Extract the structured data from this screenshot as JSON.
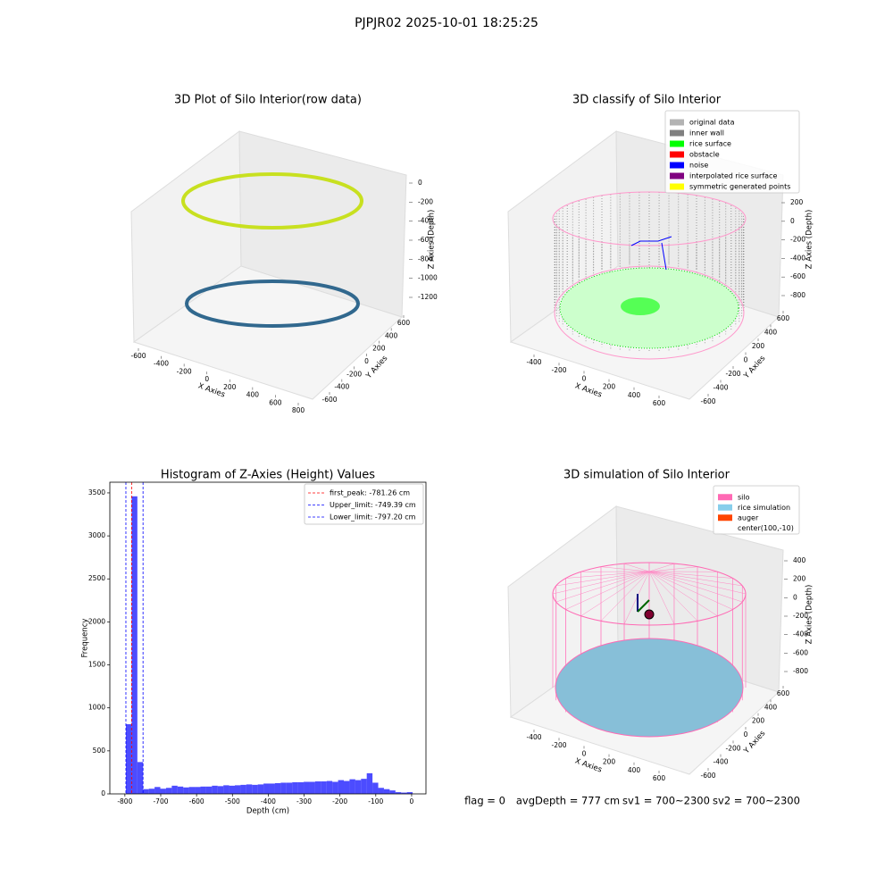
{
  "title": "PJPJR02 2025-10-01 18:25:25",
  "chart_data": [
    {
      "type": "scatter3d",
      "title": "3D Plot of Silo Interior(row data)",
      "xlabel": "X Axies",
      "ylabel": "Y Axies",
      "zlabel": "Z Axies (Depth)",
      "xticks": [
        -600,
        -400,
        -200,
        0,
        200,
        400,
        600,
        800
      ],
      "yticks": [
        -600,
        -400,
        -200,
        0,
        200,
        400,
        600
      ],
      "zticks": [
        0,
        -200,
        -400,
        -600,
        -800,
        -1000,
        -1200
      ]
    },
    {
      "type": "scatter3d",
      "title": "3D classify of Silo Interior",
      "xlabel": "X Axies",
      "ylabel": "Y Axies",
      "zlabel": "Z Axies (Depth)",
      "xticks": [
        -400,
        -200,
        0,
        200,
        400,
        600
      ],
      "yticks": [
        -600,
        -400,
        -200,
        0,
        200,
        400,
        600
      ],
      "zticks": [
        200,
        0,
        -200,
        -400,
        -600,
        -800
      ],
      "series": [
        {
          "name": "original data",
          "color": "#b3b3b3"
        },
        {
          "name": "inner wall",
          "color": "#808080"
        },
        {
          "name": "rice surface",
          "color": "#00ff00"
        },
        {
          "name": "obstacle",
          "color": "#ff0000"
        },
        {
          "name": "noise",
          "color": "#0000ff"
        },
        {
          "name": "interpolated rice surface",
          "color": "#800080"
        },
        {
          "name": "symmetric generated points",
          "color": "#ffff00"
        }
      ]
    },
    {
      "type": "histogram",
      "title": "Histogram of Z-Axies (Height) Values",
      "xlabel": "Depth (cm)",
      "ylabel": "Frequency",
      "color": "#0000ff",
      "alpha": 0.7,
      "bins": [
        -797.2,
        -781.2,
        -765.2,
        -749.2,
        -733.2,
        -717.2,
        -701.2,
        -685.2,
        -669.2,
        -653.2,
        -637.2,
        -621.2,
        -605.2,
        -589.2,
        -573.2,
        -557.2,
        -541.2,
        -525.2,
        -509.2,
        -493.2,
        -477.2,
        -461.2,
        -445.2,
        -429.2,
        -413.2,
        -397.2,
        -381.2,
        -365.2,
        -349.2,
        -333.2,
        -317.2,
        -301.2,
        -285.2,
        -269.2,
        -253.2,
        -237.2,
        -221.2,
        -205.2,
        -189.2,
        -173.2,
        -157.2,
        -141.2,
        -125.2,
        -109.2,
        -93.2,
        -77.2,
        -61.2,
        -45.2,
        -29.2,
        -13.2,
        2.8
      ],
      "values": [
        810,
        3460,
        370,
        55,
        60,
        80,
        60,
        70,
        95,
        85,
        75,
        80,
        80,
        85,
        85,
        95,
        90,
        100,
        95,
        100,
        105,
        110,
        105,
        110,
        120,
        120,
        125,
        130,
        130,
        135,
        135,
        140,
        140,
        145,
        145,
        150,
        140,
        160,
        150,
        170,
        160,
        175,
        240,
        130,
        70,
        55,
        40,
        20,
        15,
        20
      ],
      "xlim": [
        -842,
        40
      ],
      "ylim": [
        0,
        3624
      ],
      "xticks": [
        -800,
        -700,
        -600,
        -500,
        -400,
        -300,
        -200,
        -100,
        0
      ],
      "yticks": [
        0,
        500,
        1000,
        1500,
        2000,
        2500,
        3000,
        3500
      ],
      "vlines": [
        {
          "name": "first_peak: -781.26 cm",
          "value": -781.26,
          "color": "#ff0000"
        },
        {
          "name": "Upper_limit: -749.39 cm",
          "value": -749.39,
          "color": "#0000ff"
        },
        {
          "name": "Lower_limit: -797.20 cm",
          "value": -797.2,
          "color": "#0000ff"
        }
      ]
    },
    {
      "type": "scatter3d",
      "title": "3D simulation of Silo Interior",
      "xlabel": "X Axies",
      "ylabel": "Y Axies",
      "zlabel": "Z Axies (Depth)",
      "xticks": [
        -400,
        -200,
        0,
        200,
        400,
        600
      ],
      "yticks": [
        -600,
        -400,
        -200,
        0,
        200,
        400,
        600
      ],
      "zticks": [
        400,
        200,
        0,
        -200,
        -400,
        -600,
        -800
      ],
      "series": [
        {
          "name": "silo",
          "color": "#ff69b4"
        },
        {
          "name": "rice simulation",
          "color": "#87ceeb"
        },
        {
          "name": "auger",
          "color": "#ff4500"
        },
        {
          "name": "center(100,-10)"
        }
      ]
    }
  ],
  "footer": {
    "flag": "flag = 0",
    "avg": "avgDepth = 777 cm",
    "sv1": "sv1 = 700~2300",
    "sv2": "sv2 = 700~2300"
  }
}
